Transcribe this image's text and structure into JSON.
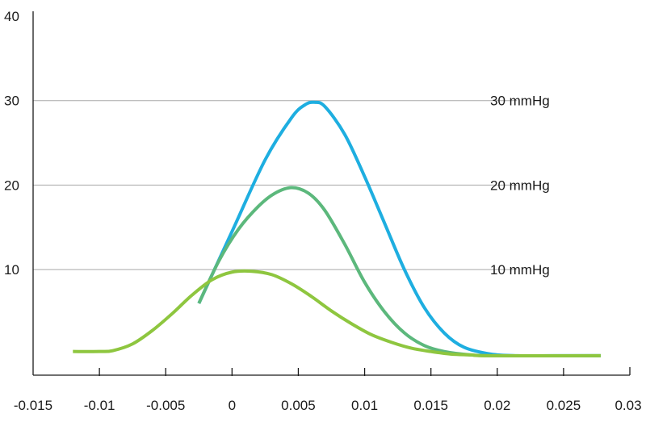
{
  "chart_data": {
    "type": "line",
    "title": "",
    "xlabel": "",
    "ylabel": "",
    "xlim": [
      -0.015,
      0.03
    ],
    "ylim": [
      -2.5,
      40
    ],
    "x_ticks": [
      -0.01,
      -0.005,
      0,
      0.005,
      0.01,
      0.015,
      0.02,
      0.025
    ],
    "x_tick_labels": [
      "-0.015",
      "-0.01",
      "-0.005",
      "0",
      "0.005",
      "0.01",
      "0.015",
      "0.02",
      "0.025",
      "0.03"
    ],
    "x_tick_label_values": [
      -0.015,
      -0.01,
      -0.005,
      0,
      0.005,
      0.01,
      0.015,
      0.02,
      0.025,
      0.03
    ],
    "y_tick_labels": [
      "40",
      "30",
      "20",
      "10"
    ],
    "y_tick_label_values": [
      40,
      30,
      20,
      10
    ],
    "gridlines": [
      30,
      20,
      10
    ],
    "grid_to_x": 0.0215,
    "series": [
      {
        "name": "30 mmHg",
        "color": "#1eaee0",
        "x": [
          -0.0025,
          0.0,
          0.0025,
          0.0045,
          0.0055,
          0.0062,
          0.007,
          0.0085,
          0.01,
          0.0115,
          0.013,
          0.0145,
          0.016,
          0.0175,
          0.0195,
          0.0215,
          0.024,
          0.0278
        ],
        "y": [
          6.0,
          14.5,
          23.0,
          28.0,
          29.5,
          29.8,
          29.3,
          26.0,
          21.0,
          15.5,
          10.0,
          5.5,
          2.5,
          0.8,
          0.0,
          -0.2,
          -0.2,
          -0.2
        ]
      },
      {
        "name": "20 mmHg",
        "color": "#5cb87c",
        "x": [
          -0.0025,
          -0.001,
          0.0005,
          0.002,
          0.0032,
          0.0045,
          0.0058,
          0.007,
          0.0085,
          0.01,
          0.0115,
          0.013,
          0.0145,
          0.016,
          0.018,
          0.02,
          0.0278
        ],
        "y": [
          6.0,
          11.0,
          14.8,
          17.5,
          19.0,
          19.7,
          19.0,
          17.0,
          13.0,
          8.5,
          5.0,
          2.5,
          1.0,
          0.3,
          -0.1,
          -0.2,
          -0.2
        ]
      },
      {
        "name": "10 mmHg",
        "color": "#8ec63f",
        "x": [
          -0.012,
          -0.01,
          -0.009,
          -0.0075,
          -0.006,
          -0.0045,
          -0.003,
          -0.0015,
          0.0,
          0.0015,
          0.003,
          0.0045,
          0.006,
          0.0075,
          0.009,
          0.0105,
          0.012,
          0.0135,
          0.015,
          0.0165,
          0.018,
          0.0195,
          0.0278
        ],
        "y": [
          0.3,
          0.3,
          0.4,
          1.2,
          2.8,
          4.8,
          7.0,
          8.8,
          9.7,
          9.8,
          9.4,
          8.3,
          6.8,
          5.1,
          3.6,
          2.3,
          1.4,
          0.7,
          0.3,
          0.0,
          -0.1,
          -0.2,
          -0.2
        ]
      }
    ],
    "annotations": [
      {
        "text": "30 mmHg",
        "y": 30
      },
      {
        "text": "20 mmHg",
        "y": 20
      },
      {
        "text": "10 mmHg",
        "y": 10
      }
    ],
    "grid": true,
    "legend": "none"
  }
}
